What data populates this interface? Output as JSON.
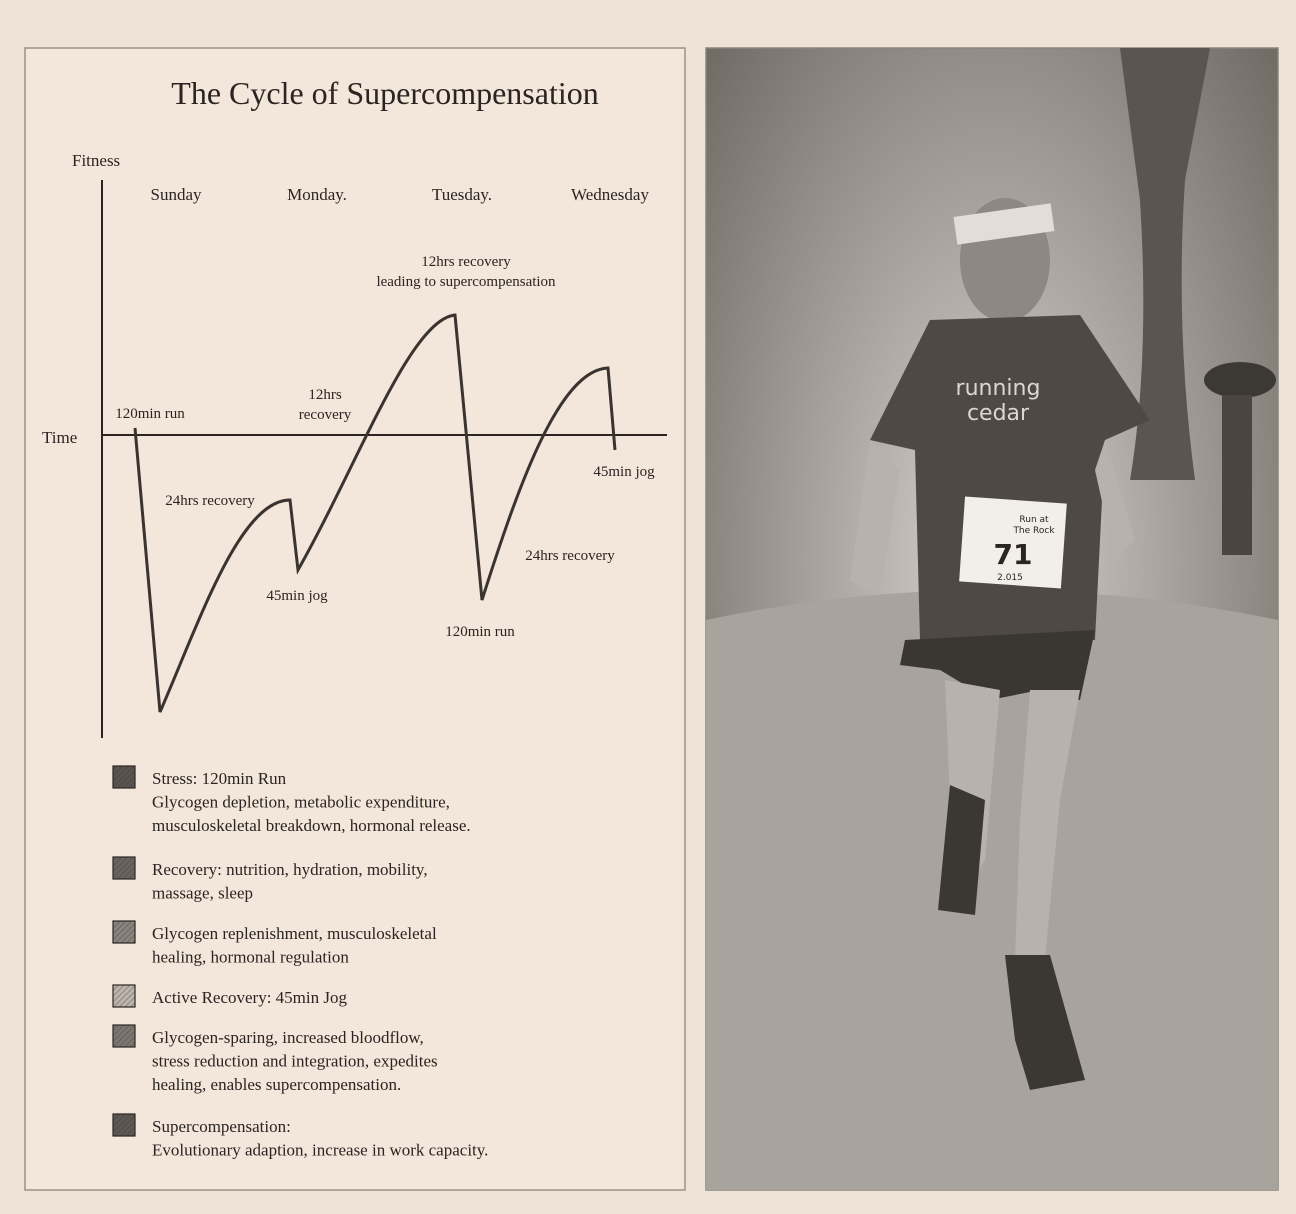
{
  "title": "The Cycle of Supercompensation",
  "axes": {
    "y": "Fitness",
    "x": "Time"
  },
  "days": [
    "Sunday",
    "Monday.",
    "Tuesday.",
    "Wednesday"
  ],
  "annotations": [
    {
      "lines": [
        "120min run"
      ]
    },
    {
      "lines": [
        "24hrs recovery"
      ]
    },
    {
      "lines": [
        "45min jog"
      ]
    },
    {
      "lines": [
        "12hrs",
        "recovery"
      ]
    },
    {
      "lines": [
        "12hrs recovery",
        "leading to supercompensation"
      ]
    },
    {
      "lines": [
        "120min run"
      ]
    },
    {
      "lines": [
        "24hrs recovery"
      ]
    },
    {
      "lines": [
        "45min jog"
      ]
    }
  ],
  "legend": [
    {
      "lines": [
        "Stress: 120min Run",
        "Glycogen depletion, metabolic expenditure,",
        "musculoskeletal breakdown, hormonal release."
      ]
    },
    {
      "lines": [
        "Recovery: nutrition, hydration, mobility,",
        "massage, sleep"
      ]
    },
    {
      "lines": [
        "Glycogen replenishment, musculoskeletal",
        "healing, hormonal regulation"
      ]
    },
    {
      "lines": [
        "Active Recovery: 45min Jog"
      ]
    },
    {
      "lines": [
        "Glycogen-sparing, increased bloodflow,",
        "stress reduction and integration, expedites",
        "healing, enables supercompensation."
      ]
    },
    {
      "lines": [
        "Supercompensation:",
        "Evolutionary adaption, increase in work capacity."
      ]
    }
  ],
  "photo": {
    "shirt": [
      "running",
      "cedar"
    ],
    "bib": {
      "event": [
        "Run at",
        "The Rock"
      ],
      "number": "71",
      "year": "2.015"
    }
  }
}
